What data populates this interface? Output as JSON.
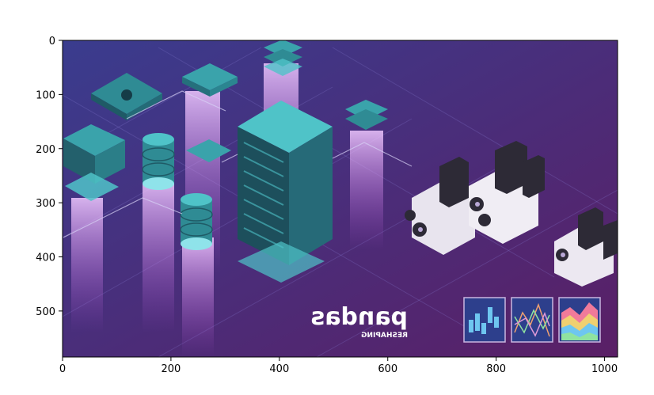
{
  "chart_data": {
    "type": "image",
    "xlim": [
      0,
      1024
    ],
    "ylim": [
      585,
      0
    ],
    "x_ticks": [
      0,
      200,
      400,
      600,
      800,
      1000
    ],
    "y_ticks": [
      0,
      100,
      200,
      300,
      400,
      500
    ],
    "grid": false,
    "image": {
      "logo_text": "pandas",
      "logo_subtext": "RESHAPING",
      "colors": {
        "bg_top": "#3a3c8e",
        "bg_bottom": "#5a1f66",
        "accent_teal": "#4fc3c8",
        "accent_pink": "#d77bf0",
        "panel_border": "#c9b6e0"
      },
      "icons": [
        "server-rack-icon",
        "database-cylinder-icon",
        "panda-illustration-icon",
        "bar-chart-icon",
        "line-chart-icon",
        "area-chart-icon"
      ]
    }
  }
}
